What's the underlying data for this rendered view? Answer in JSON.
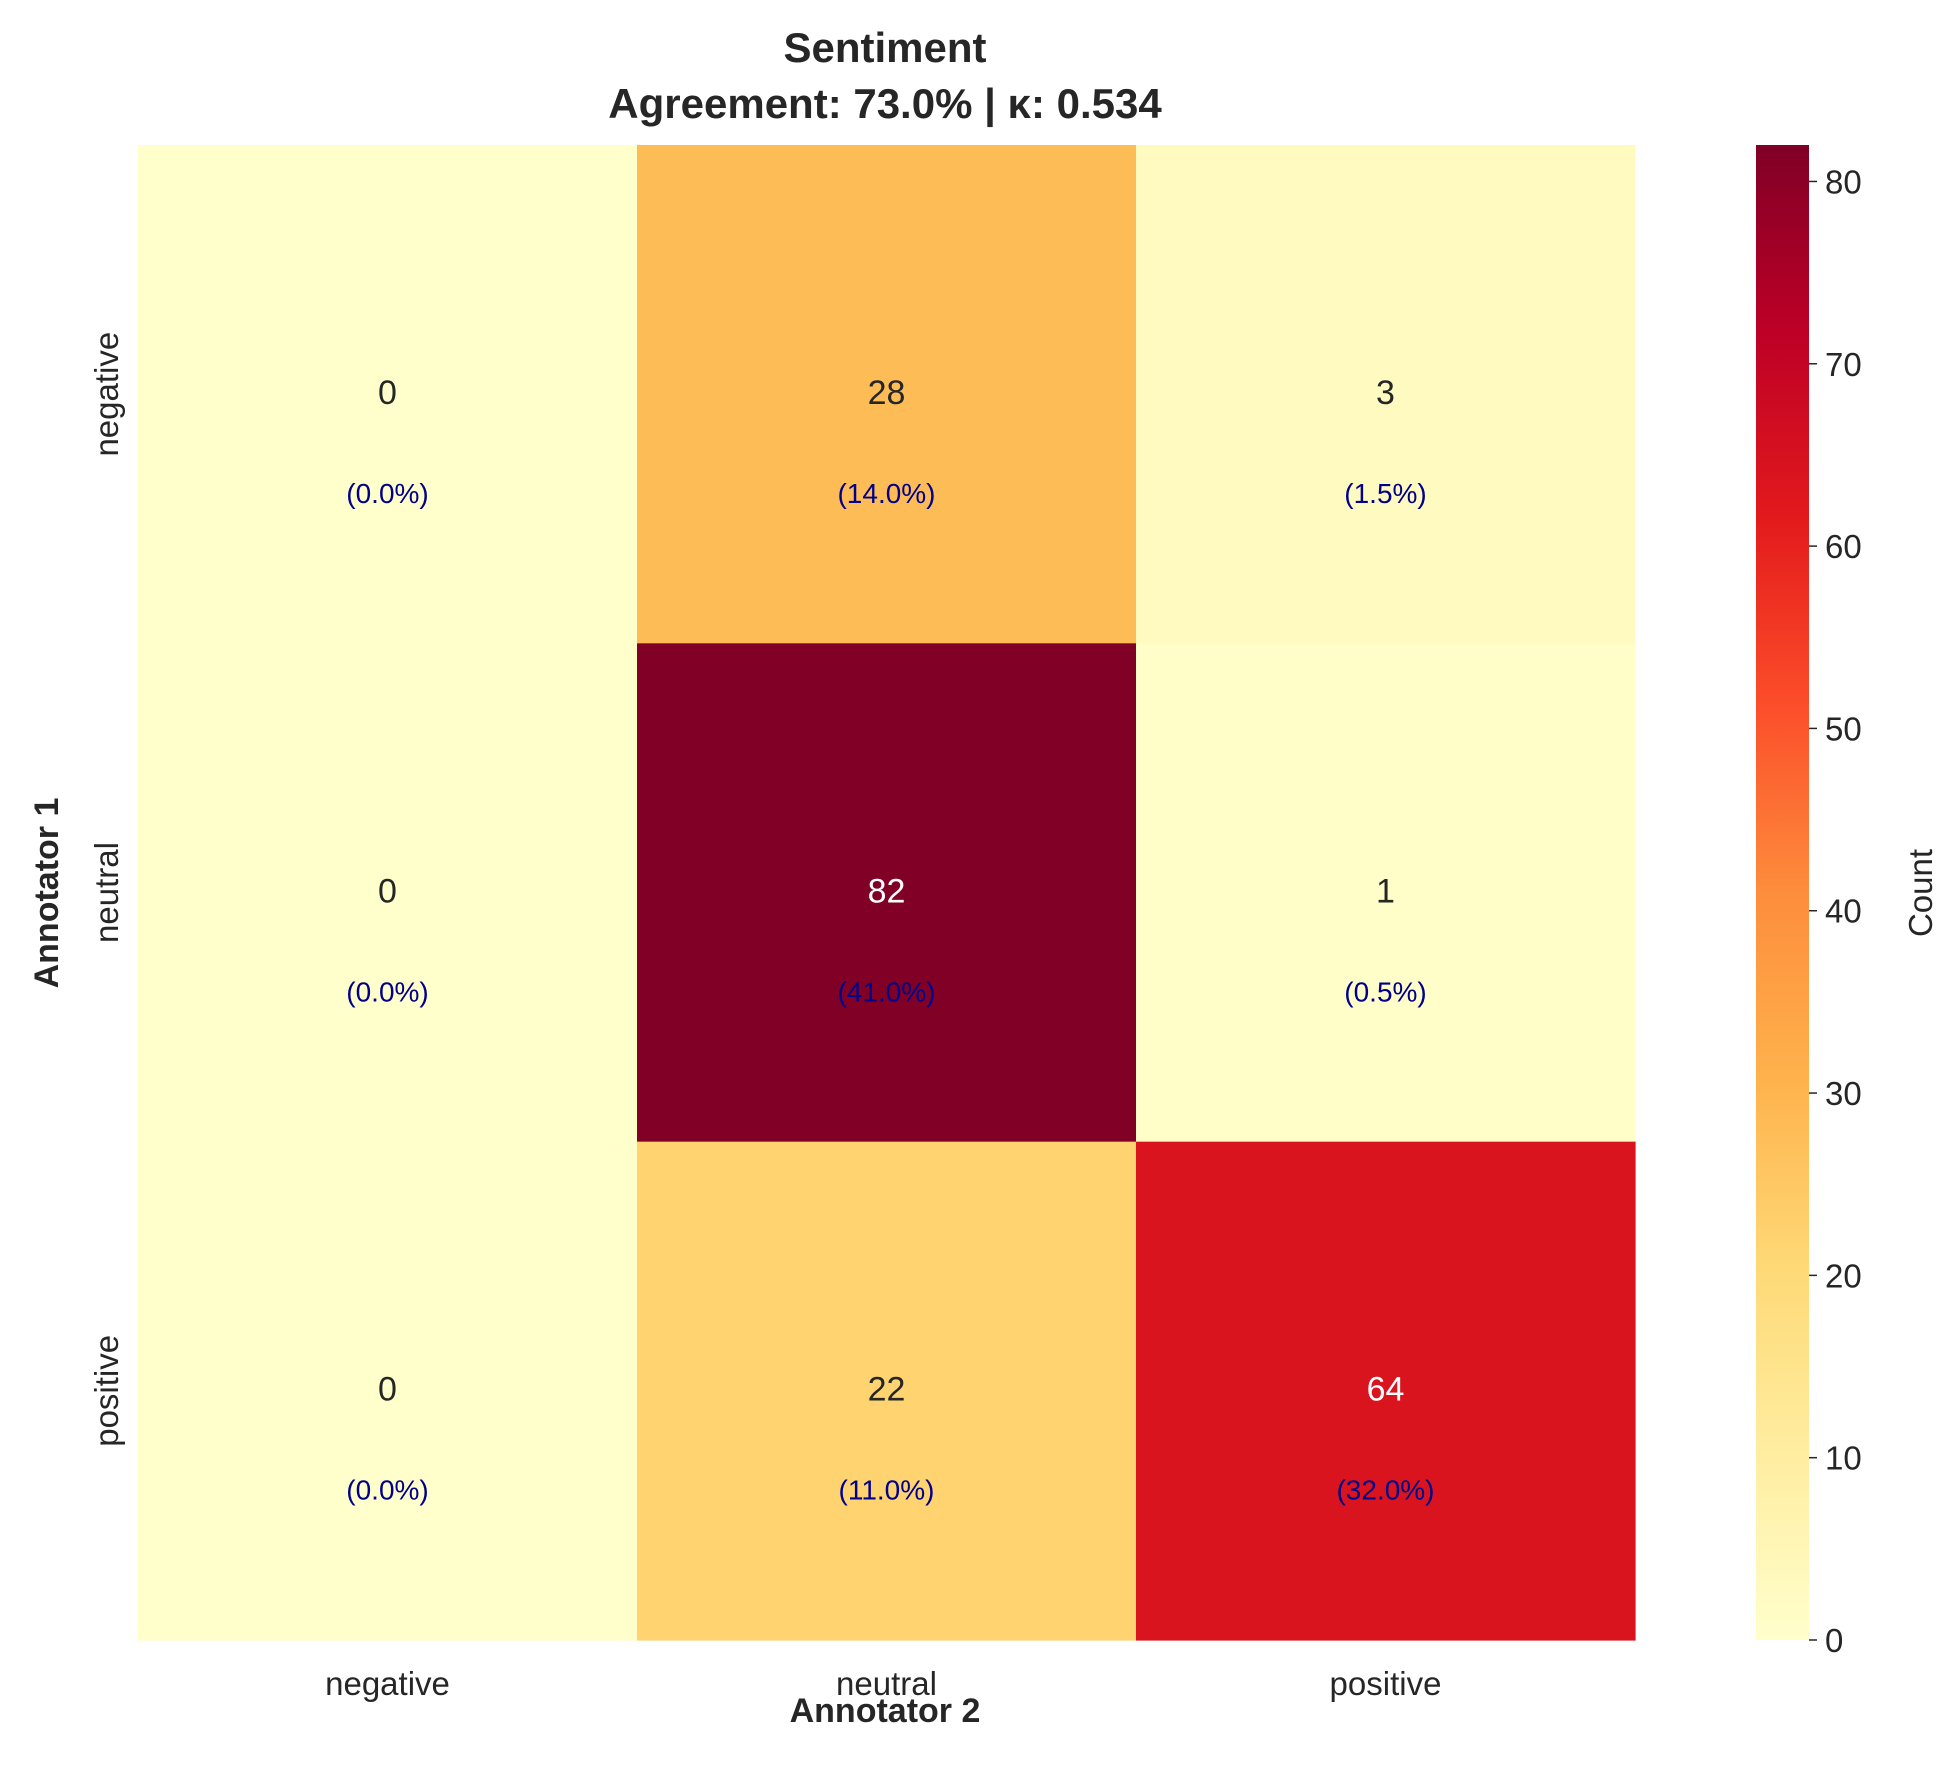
{
  "chart_data": {
    "type": "heatmap",
    "title": "Sentiment",
    "subtitle": "Agreement: 73.0% | κ: 0.534",
    "xlabel": "Annotator 2",
    "ylabel": "Annotator 1",
    "x_categories": [
      "negative",
      "neutral",
      "positive"
    ],
    "y_categories": [
      "negative",
      "neutral",
      "positive"
    ],
    "values": [
      [
        0,
        28,
        3
      ],
      [
        0,
        82,
        1
      ],
      [
        0,
        22,
        64
      ]
    ],
    "percentages": [
      [
        "(0.0%)",
        "(14.0%)",
        "(1.5%)"
      ],
      [
        "(0.0%)",
        "(41.0%)",
        "(0.5%)"
      ],
      [
        "(0.0%)",
        "(11.0%)",
        "(32.0%)"
      ]
    ],
    "colorbar": {
      "label": "Count",
      "range": [
        0,
        82
      ],
      "ticks": [
        0,
        10,
        20,
        30,
        40,
        50,
        60,
        70,
        80
      ],
      "colormap": "YlOrRd"
    },
    "grid": false,
    "legend": "none"
  }
}
